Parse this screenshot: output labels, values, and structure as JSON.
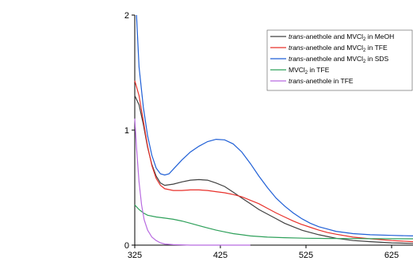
{
  "chart_data": {
    "type": "line",
    "title": "",
    "xlabel": "",
    "ylabel": "",
    "xlim": [
      325,
      650
    ],
    "ylim": [
      0,
      2
    ],
    "x_ticks": [
      "325",
      "425",
      "525",
      "625"
    ],
    "y_ticks": [
      "0",
      "1",
      "2"
    ],
    "grid": false,
    "legend_position": "top-right",
    "series": [
      {
        "name": "trans-anethole and MVCl2 in MeOH",
        "legend_italic": "trans",
        "legend_rest": "-anethole and MVCl",
        "legend_sub": "2",
        "legend_tail": " in MeOH",
        "color": "#404040",
        "points": [
          [
            325,
            1.3
          ],
          [
            330,
            1.22
          ],
          [
            335,
            1.05
          ],
          [
            340,
            0.85
          ],
          [
            345,
            0.7
          ],
          [
            350,
            0.6
          ],
          [
            355,
            0.54
          ],
          [
            360,
            0.52
          ],
          [
            370,
            0.53
          ],
          [
            380,
            0.55
          ],
          [
            390,
            0.565
          ],
          [
            400,
            0.57
          ],
          [
            410,
            0.565
          ],
          [
            420,
            0.54
          ],
          [
            430,
            0.51
          ],
          [
            440,
            0.46
          ],
          [
            450,
            0.41
          ],
          [
            460,
            0.36
          ],
          [
            470,
            0.31
          ],
          [
            480,
            0.27
          ],
          [
            490,
            0.23
          ],
          [
            500,
            0.19
          ],
          [
            510,
            0.16
          ],
          [
            520,
            0.13
          ],
          [
            530,
            0.11
          ],
          [
            540,
            0.09
          ],
          [
            550,
            0.075
          ],
          [
            560,
            0.06
          ],
          [
            580,
            0.04
          ],
          [
            600,
            0.03
          ],
          [
            625,
            0.02
          ],
          [
            650,
            0.015
          ]
        ]
      },
      {
        "name": "trans-anethole and MVCl2 in TFE",
        "legend_italic": "trans",
        "legend_rest": "-anethole and MVCl",
        "legend_sub": "2",
        "legend_tail": " in TFE",
        "color": "#e8302a",
        "points": [
          [
            325,
            1.43
          ],
          [
            330,
            1.3
          ],
          [
            335,
            1.08
          ],
          [
            340,
            0.86
          ],
          [
            345,
            0.69
          ],
          [
            350,
            0.58
          ],
          [
            355,
            0.52
          ],
          [
            360,
            0.49
          ],
          [
            370,
            0.475
          ],
          [
            380,
            0.475
          ],
          [
            390,
            0.48
          ],
          [
            400,
            0.48
          ],
          [
            410,
            0.475
          ],
          [
            420,
            0.465
          ],
          [
            430,
            0.455
          ],
          [
            440,
            0.44
          ],
          [
            450,
            0.42
          ],
          [
            460,
            0.39
          ],
          [
            470,
            0.36
          ],
          [
            480,
            0.32
          ],
          [
            490,
            0.28
          ],
          [
            500,
            0.245
          ],
          [
            510,
            0.21
          ],
          [
            520,
            0.18
          ],
          [
            530,
            0.155
          ],
          [
            540,
            0.13
          ],
          [
            550,
            0.11
          ],
          [
            560,
            0.095
          ],
          [
            580,
            0.07
          ],
          [
            600,
            0.055
          ],
          [
            625,
            0.04
          ],
          [
            650,
            0.03
          ]
        ]
      },
      {
        "name": "trans-anethole and MVCl2 in SDS",
        "legend_italic": "trans",
        "legend_rest": "-anethole and MVCl",
        "legend_sub": "2",
        "legend_tail": " in SDS",
        "color": "#1f5fd6",
        "points": [
          [
            327,
            2.0
          ],
          [
            330,
            1.55
          ],
          [
            335,
            1.2
          ],
          [
            340,
            0.95
          ],
          [
            345,
            0.78
          ],
          [
            350,
            0.67
          ],
          [
            355,
            0.62
          ],
          [
            360,
            0.61
          ],
          [
            365,
            0.62
          ],
          [
            370,
            0.66
          ],
          [
            380,
            0.74
          ],
          [
            390,
            0.81
          ],
          [
            400,
            0.86
          ],
          [
            410,
            0.9
          ],
          [
            420,
            0.92
          ],
          [
            430,
            0.915
          ],
          [
            440,
            0.88
          ],
          [
            450,
            0.81
          ],
          [
            460,
            0.71
          ],
          [
            470,
            0.6
          ],
          [
            480,
            0.5
          ],
          [
            490,
            0.41
          ],
          [
            500,
            0.34
          ],
          [
            510,
            0.28
          ],
          [
            520,
            0.23
          ],
          [
            530,
            0.19
          ],
          [
            540,
            0.16
          ],
          [
            550,
            0.14
          ],
          [
            560,
            0.12
          ],
          [
            580,
            0.1
          ],
          [
            600,
            0.09
          ],
          [
            625,
            0.085
          ],
          [
            650,
            0.08
          ]
        ]
      },
      {
        "name": "MVCl2 in TFE",
        "legend_italic": "",
        "legend_rest": "MVCl",
        "legend_sub": "2",
        "legend_tail": " in TFE",
        "color": "#2ea05a",
        "points": [
          [
            325,
            0.35
          ],
          [
            330,
            0.31
          ],
          [
            335,
            0.28
          ],
          [
            340,
            0.26
          ],
          [
            350,
            0.245
          ],
          [
            360,
            0.235
          ],
          [
            370,
            0.225
          ],
          [
            380,
            0.21
          ],
          [
            390,
            0.19
          ],
          [
            400,
            0.17
          ],
          [
            410,
            0.15
          ],
          [
            420,
            0.13
          ],
          [
            430,
            0.115
          ],
          [
            440,
            0.1
          ],
          [
            450,
            0.09
          ],
          [
            460,
            0.08
          ],
          [
            480,
            0.07
          ],
          [
            500,
            0.065
          ],
          [
            525,
            0.06
          ],
          [
            550,
            0.058
          ],
          [
            575,
            0.057
          ],
          [
            600,
            0.056
          ],
          [
            650,
            0.055
          ]
        ]
      },
      {
        "name": "trans-anethole in TFE",
        "legend_italic": "trans",
        "legend_rest": "-anethole in TFE",
        "legend_sub": "",
        "legend_tail": "",
        "color": "#b86be0",
        "points": [
          [
            325,
            1.1
          ],
          [
            327,
            0.85
          ],
          [
            330,
            0.55
          ],
          [
            333,
            0.35
          ],
          [
            336,
            0.22
          ],
          [
            340,
            0.13
          ],
          [
            345,
            0.07
          ],
          [
            350,
            0.04
          ],
          [
            355,
            0.02
          ],
          [
            360,
            0.01
          ],
          [
            370,
            0.004
          ],
          [
            390,
            0.0
          ],
          [
            420,
            0.0
          ],
          [
            460,
            0.0
          ]
        ]
      }
    ]
  }
}
